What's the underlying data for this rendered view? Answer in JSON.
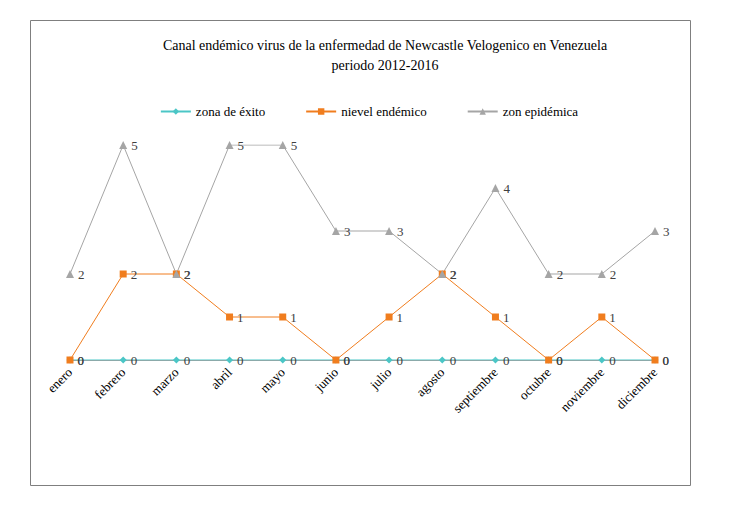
{
  "chart_data": {
    "type": "line",
    "title": "Canal endémico virus de la enfermedad de Newcastle Velogenico en Venezuela\nperiodo 2012-2016",
    "categories": [
      "enero",
      "febrero",
      "marzo",
      "abril",
      "mayo",
      "junio",
      "julio",
      "agosto",
      "septiembre",
      "octubre",
      "noviembre",
      "diciembre"
    ],
    "series": [
      {
        "name": "zona de éxito",
        "color": "#4bc6c6",
        "marker": "diamond",
        "values": [
          0,
          0,
          0,
          0,
          0,
          0,
          0,
          0,
          0,
          0,
          0,
          0
        ]
      },
      {
        "name": "nievel endémico",
        "color": "#f07d1e",
        "marker": "square",
        "values": [
          0,
          2,
          2,
          1,
          1,
          0,
          1,
          2,
          1,
          0,
          1,
          0
        ]
      },
      {
        "name": "zon epidémica",
        "color": "#a5a5a5",
        "marker": "triangle",
        "values": [
          2,
          5,
          2,
          5,
          5,
          3,
          3,
          2,
          4,
          2,
          2,
          3
        ]
      }
    ],
    "ylim": [
      0,
      5
    ],
    "grid": false,
    "legend": "top",
    "data_labels": true,
    "tick_labels": "x"
  }
}
